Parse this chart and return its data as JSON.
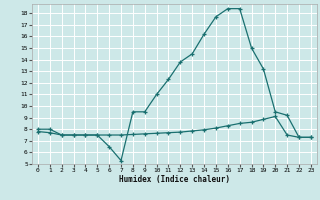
{
  "xlabel": "Humidex (Indice chaleur)",
  "ylabel": "",
  "bg_color": "#cde8e8",
  "grid_color": "#ffffff",
  "line_color": "#1a7070",
  "xlim": [
    -0.5,
    23.5
  ],
  "ylim": [
    5,
    18.8
  ],
  "xticks": [
    0,
    1,
    2,
    3,
    4,
    5,
    6,
    7,
    8,
    9,
    10,
    11,
    12,
    13,
    14,
    15,
    16,
    17,
    18,
    19,
    20,
    21,
    22,
    23
  ],
  "yticks": [
    5,
    6,
    7,
    8,
    9,
    10,
    11,
    12,
    13,
    14,
    15,
    16,
    17,
    18
  ],
  "line1_x": [
    0,
    1,
    2,
    3,
    4,
    5,
    6,
    7,
    8,
    9,
    10,
    11,
    12,
    13,
    14,
    15,
    16,
    17,
    18,
    19,
    20,
    21,
    22,
    23
  ],
  "line1_y": [
    8.0,
    8.0,
    7.5,
    7.5,
    7.5,
    7.5,
    6.5,
    5.3,
    9.5,
    9.5,
    11.0,
    12.3,
    13.8,
    14.5,
    16.2,
    17.7,
    18.4,
    18.4,
    15.0,
    13.2,
    9.5,
    9.2,
    7.3,
    7.3
  ],
  "line2_x": [
    0,
    1,
    2,
    3,
    4,
    5,
    6,
    7,
    8,
    9,
    10,
    11,
    12,
    13,
    14,
    15,
    16,
    17,
    18,
    19,
    20,
    21,
    22,
    23
  ],
  "line2_y": [
    7.8,
    7.7,
    7.5,
    7.5,
    7.5,
    7.5,
    7.5,
    7.5,
    7.55,
    7.6,
    7.65,
    7.7,
    7.75,
    7.85,
    7.95,
    8.1,
    8.3,
    8.5,
    8.6,
    8.85,
    9.1,
    7.5,
    7.3,
    7.3
  ]
}
